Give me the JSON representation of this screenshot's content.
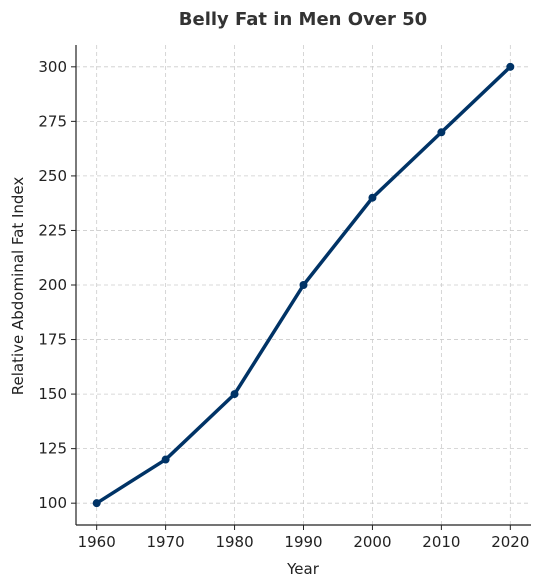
{
  "chart_data": {
    "type": "line",
    "title": "Belly Fat in Men Over 50",
    "xlabel": "Year",
    "ylabel": "Relative Abdominal Fat Index",
    "x": [
      1960,
      1970,
      1980,
      1990,
      2000,
      2010,
      2020
    ],
    "series": [
      {
        "values": [
          100,
          120,
          150,
          200,
          240,
          270,
          300
        ]
      }
    ],
    "xticks": [
      "1960",
      "1970",
      "1980",
      "1990",
      "2000",
      "2010",
      "2020"
    ],
    "yticks": [
      "100",
      "125",
      "150",
      "175",
      "200",
      "225",
      "250",
      "275",
      "300"
    ],
    "xlim": [
      1957,
      2023
    ],
    "ylim": [
      90,
      310
    ],
    "grid": true,
    "colors": {
      "line": "#003366",
      "marker": "#003366"
    }
  }
}
